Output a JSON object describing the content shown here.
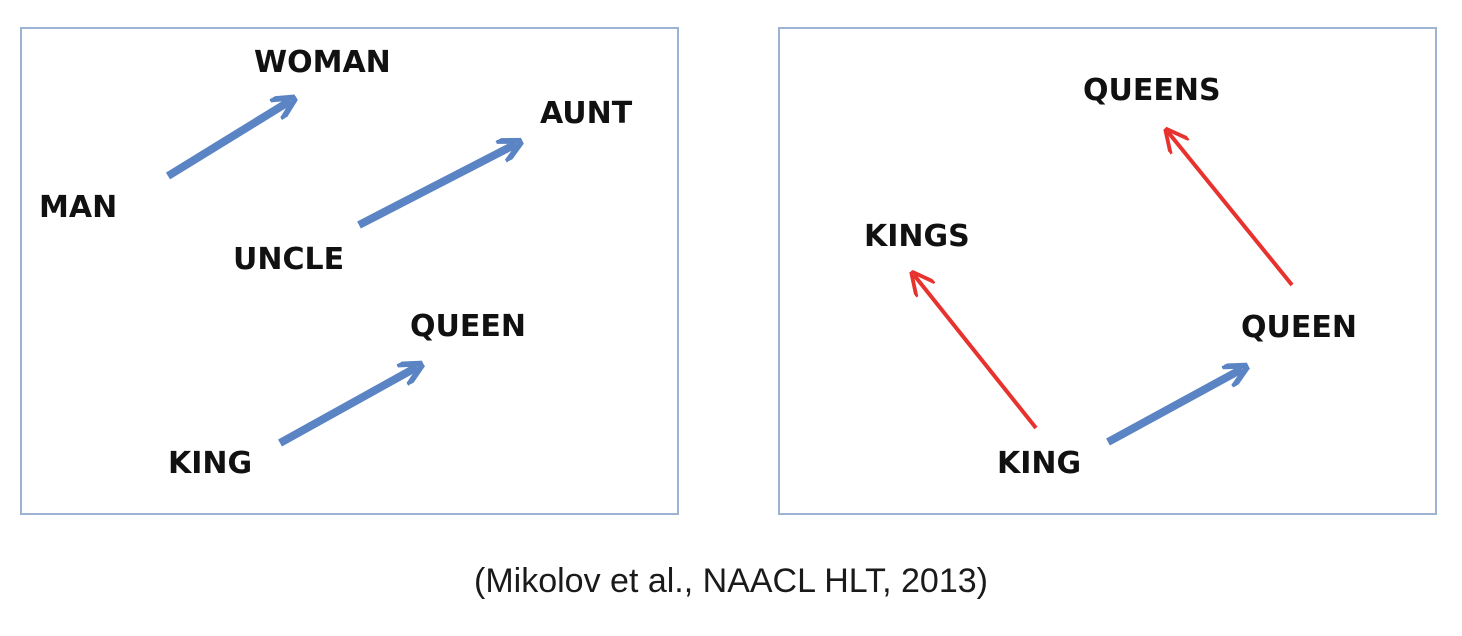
{
  "left_panel": {
    "words": {
      "man": "MAN",
      "woman": "WOMAN",
      "uncle": "UNCLE",
      "aunt": "AUNT",
      "king": "KING",
      "queen": "QUEEN"
    },
    "relation_color": "#5b84c4"
  },
  "right_panel": {
    "words": {
      "kings": "KINGS",
      "queens": "QUEENS",
      "king": "KING",
      "queen": "QUEEN"
    },
    "gender_color": "#5b84c4",
    "plural_color": "#e8322e"
  },
  "caption": "(Mikolov et al., NAACL HLT, 2013)"
}
